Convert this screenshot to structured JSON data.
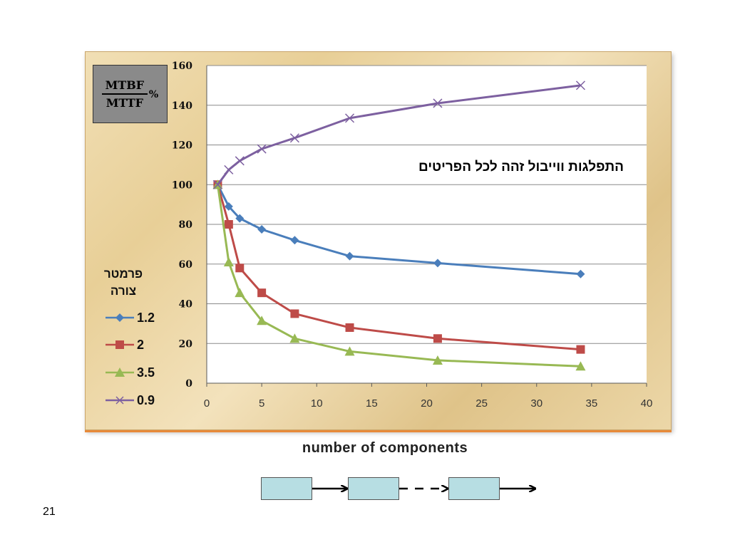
{
  "chart_data": {
    "type": "line",
    "xlabel": "number of components",
    "ylabel_top": "MTBF",
    "ylabel_bottom": "MTTF",
    "ylabel_unit": "%",
    "annotation": "התפלגות ווייבול זהה לכל הפריטים",
    "legend_title": "פרמטר צורה",
    "legend_placement": "left",
    "xlim": [
      0,
      40
    ],
    "ylim": [
      0,
      160
    ],
    "x_ticks": [
      "0",
      "5",
      "10",
      "15",
      "20",
      "25",
      "30",
      "35",
      "40"
    ],
    "y_ticks": [
      "0",
      "20",
      "40",
      "60",
      "80",
      "100",
      "120",
      "140",
      "160"
    ],
    "grid": "horizontal",
    "x": [
      1,
      2,
      3,
      5,
      8,
      13,
      21,
      34
    ],
    "series": [
      {
        "name": "1.2",
        "color": "#4a7ebb",
        "marker": "diamond",
        "values": [
          100,
          89,
          83,
          77.5,
          72,
          64,
          60.5,
          55
        ]
      },
      {
        "name": "2",
        "color": "#be4b48",
        "marker": "square",
        "values": [
          100,
          80,
          58,
          45.5,
          35,
          28,
          22.5,
          17
        ]
      },
      {
        "name": "3.5",
        "color": "#98b954",
        "marker": "triangle",
        "values": [
          100,
          61,
          45.5,
          31.5,
          22.5,
          16,
          11.5,
          8.5
        ]
      },
      {
        "name": "0.9",
        "color": "#7d60a0",
        "marker": "x",
        "values": [
          100,
          107.5,
          112,
          118,
          123.5,
          133.5,
          141,
          150
        ]
      }
    ]
  },
  "page": {
    "number": "21"
  }
}
